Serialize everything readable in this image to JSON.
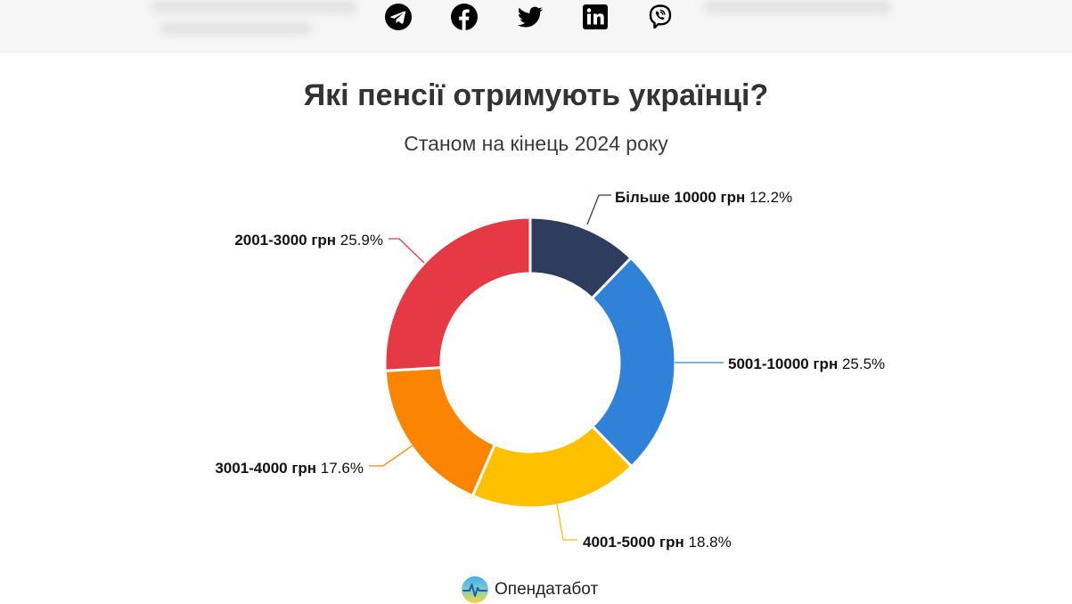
{
  "header": {
    "share_icons": [
      {
        "name": "telegram-icon",
        "color": "#000000"
      },
      {
        "name": "facebook-icon",
        "color": "#000000"
      },
      {
        "name": "twitter-icon",
        "color": "#000000"
      },
      {
        "name": "linkedin-icon",
        "color": "#000000"
      },
      {
        "name": "viber-icon",
        "color": "#000000"
      }
    ]
  },
  "chart_data": {
    "type": "pie",
    "donut": true,
    "title": "Які пенсії отримують українці?",
    "subtitle": "Станом на кінець 2024 року",
    "slices": [
      {
        "label": "Більше 10000 грн",
        "value": 12.2,
        "display": "12.2%",
        "color": "#2e3c5e"
      },
      {
        "label": "5001-10000 грн",
        "value": 25.5,
        "display": "25.5%",
        "color": "#2f82d8"
      },
      {
        "label": "4001-5000 грн",
        "value": 18.8,
        "display": "18.8%",
        "color": "#ffc000"
      },
      {
        "label": "3001-4000 грн",
        "value": 17.6,
        "display": "17.6%",
        "color": "#fb8500"
      },
      {
        "label": "2001-3000 грн",
        "value": 25.9,
        "display": "25.9%",
        "color": "#e63946"
      }
    ],
    "legend": "none"
  },
  "footer": {
    "brand": "Опендатабот"
  }
}
